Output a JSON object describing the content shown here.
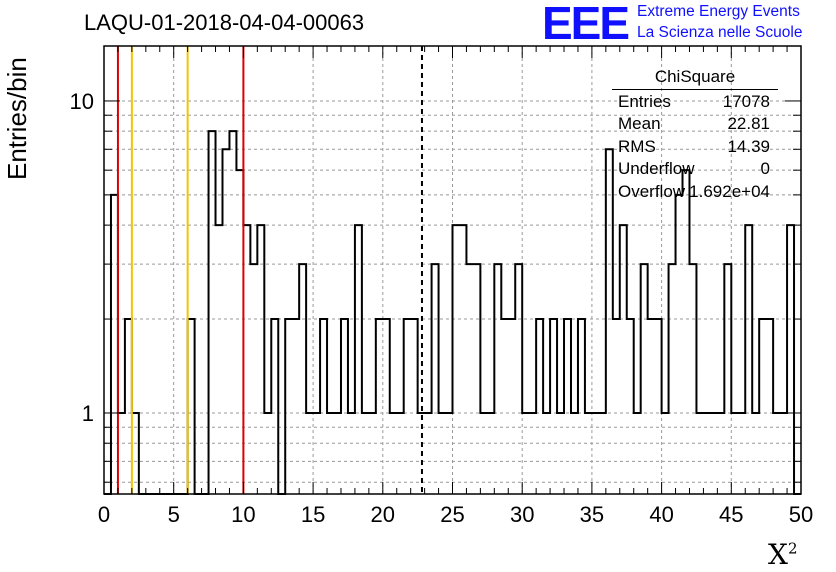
{
  "title": "LAQU-01-2018-04-04-00063",
  "logo": {
    "mark": "EEE",
    "line1": "Extreme Energy Events",
    "line2": "La Scienza nelle Scuole"
  },
  "stats": {
    "name": "ChiSquare",
    "rows": [
      {
        "key": "Entries",
        "value": "17078"
      },
      {
        "key": "Mean",
        "value": "22.81"
      },
      {
        "key": "RMS",
        "value": "14.39"
      },
      {
        "key": "Underflow",
        "value": "0"
      },
      {
        "key": "Overflow",
        "value": "1.692e+04"
      }
    ]
  },
  "colors": {
    "histogram": "#000000",
    "red_line": "#dd0000",
    "yellow_line": "#f5c400",
    "grid": "#999999",
    "logo": "#1010ff"
  },
  "chart_data": {
    "type": "histogram",
    "ylabel": "Entries/bin",
    "xlabel": "X",
    "xlabel_sup": "2",
    "xlim": [
      0,
      50
    ],
    "ylim": [
      0.55,
      15
    ],
    "yscale": "log",
    "grid": true,
    "bin_width": 0.5,
    "x_ticks": [
      "0",
      "5",
      "10",
      "15",
      "20",
      "25",
      "30",
      "35",
      "40",
      "45",
      "50"
    ],
    "y_ticks": [
      {
        "value": 1,
        "label": "1"
      },
      {
        "value": 10,
        "label": "10"
      }
    ],
    "bins": [
      {
        "x": 0.5,
        "y": 5
      },
      {
        "x": 1.0,
        "y": 1
      },
      {
        "x": 1.5,
        "y": 2
      },
      {
        "x": 2.0,
        "y": 1
      },
      {
        "x": 6.0,
        "y": 2
      },
      {
        "x": 7.5,
        "y": 8
      },
      {
        "x": 8.0,
        "y": 4
      },
      {
        "x": 8.5,
        "y": 7
      },
      {
        "x": 9.0,
        "y": 8
      },
      {
        "x": 9.5,
        "y": 6
      },
      {
        "x": 10.0,
        "y": 4
      },
      {
        "x": 10.5,
        "y": 3
      },
      {
        "x": 11.0,
        "y": 4
      },
      {
        "x": 11.5,
        "y": 1
      },
      {
        "x": 12.0,
        "y": 2
      },
      {
        "x": 13.0,
        "y": 2
      },
      {
        "x": 13.5,
        "y": 2
      },
      {
        "x": 14.0,
        "y": 3
      },
      {
        "x": 14.5,
        "y": 1
      },
      {
        "x": 15.0,
        "y": 1
      },
      {
        "x": 15.5,
        "y": 2
      },
      {
        "x": 16.0,
        "y": 1
      },
      {
        "x": 16.5,
        "y": 1
      },
      {
        "x": 17.0,
        "y": 2
      },
      {
        "x": 17.5,
        "y": 1
      },
      {
        "x": 18.0,
        "y": 4
      },
      {
        "x": 18.5,
        "y": 1
      },
      {
        "x": 19.0,
        "y": 1
      },
      {
        "x": 19.5,
        "y": 2
      },
      {
        "x": 20.0,
        "y": 2
      },
      {
        "x": 20.5,
        "y": 1
      },
      {
        "x": 21.0,
        "y": 1
      },
      {
        "x": 21.5,
        "y": 2
      },
      {
        "x": 22.0,
        "y": 2
      },
      {
        "x": 22.5,
        "y": 1
      },
      {
        "x": 23.0,
        "y": 1
      },
      {
        "x": 23.5,
        "y": 3
      },
      {
        "x": 24.0,
        "y": 1
      },
      {
        "x": 24.5,
        "y": 1
      },
      {
        "x": 25.0,
        "y": 4
      },
      {
        "x": 25.5,
        "y": 4
      },
      {
        "x": 26.0,
        "y": 3
      },
      {
        "x": 26.5,
        "y": 3
      },
      {
        "x": 27.0,
        "y": 1
      },
      {
        "x": 27.5,
        "y": 1
      },
      {
        "x": 28.0,
        "y": 3
      },
      {
        "x": 28.5,
        "y": 2
      },
      {
        "x": 29.0,
        "y": 2
      },
      {
        "x": 29.5,
        "y": 3
      },
      {
        "x": 30.0,
        "y": 1
      },
      {
        "x": 30.5,
        "y": 1
      },
      {
        "x": 31.0,
        "y": 2
      },
      {
        "x": 31.5,
        "y": 1
      },
      {
        "x": 32.0,
        "y": 2
      },
      {
        "x": 32.5,
        "y": 1
      },
      {
        "x": 33.0,
        "y": 2
      },
      {
        "x": 33.5,
        "y": 1
      },
      {
        "x": 34.0,
        "y": 2
      },
      {
        "x": 34.5,
        "y": 1
      },
      {
        "x": 35.0,
        "y": 1
      },
      {
        "x": 35.5,
        "y": 1
      },
      {
        "x": 36.0,
        "y": 7
      },
      {
        "x": 36.5,
        "y": 2
      },
      {
        "x": 37.0,
        "y": 4
      },
      {
        "x": 37.5,
        "y": 2
      },
      {
        "x": 38.0,
        "y": 1
      },
      {
        "x": 38.5,
        "y": 3
      },
      {
        "x": 39.0,
        "y": 2
      },
      {
        "x": 39.5,
        "y": 2
      },
      {
        "x": 40.0,
        "y": 1
      },
      {
        "x": 40.5,
        "y": 3
      },
      {
        "x": 41.0,
        "y": 5
      },
      {
        "x": 41.5,
        "y": 6
      },
      {
        "x": 42.0,
        "y": 3
      },
      {
        "x": 42.5,
        "y": 1
      },
      {
        "x": 43.0,
        "y": 1
      },
      {
        "x": 43.5,
        "y": 1
      },
      {
        "x": 44.0,
        "y": 1
      },
      {
        "x": 44.5,
        "y": 3
      },
      {
        "x": 45.0,
        "y": 1
      },
      {
        "x": 45.5,
        "y": 1
      },
      {
        "x": 46.0,
        "y": 4
      },
      {
        "x": 46.5,
        "y": 1
      },
      {
        "x": 47.0,
        "y": 2
      },
      {
        "x": 47.5,
        "y": 2
      },
      {
        "x": 48.0,
        "y": 1
      },
      {
        "x": 48.5,
        "y": 1
      },
      {
        "x": 49.0,
        "y": 4
      }
    ],
    "vertical_lines": [
      {
        "x": 1.0,
        "color": "#dd0000",
        "style": "solid"
      },
      {
        "x": 2.0,
        "color": "#f5c400",
        "style": "solid"
      },
      {
        "x": 6.0,
        "color": "#f5c400",
        "style": "solid"
      },
      {
        "x": 10.0,
        "color": "#dd0000",
        "style": "solid"
      },
      {
        "x": 22.81,
        "color": "#000000",
        "style": "dashed"
      }
    ]
  }
}
